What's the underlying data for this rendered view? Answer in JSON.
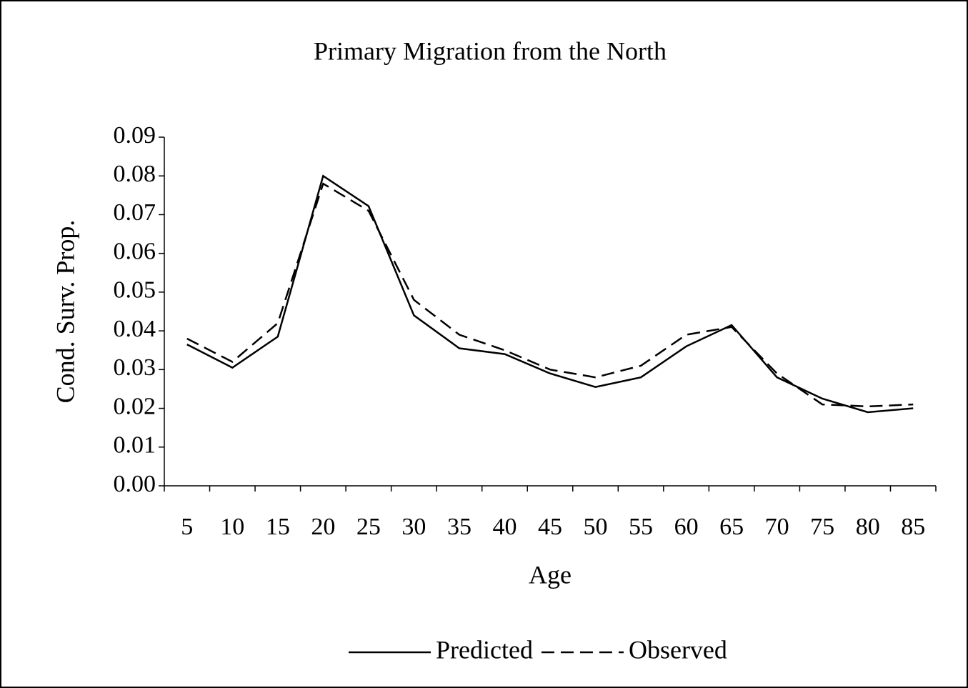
{
  "chart_data": {
    "type": "line",
    "title": "Primary Migration from the North",
    "x_label": "Age",
    "y_label": "Cond. Surv. Prop.",
    "categories": [
      "5",
      "10",
      "15",
      "20",
      "25",
      "30",
      "35",
      "40",
      "45",
      "50",
      "55",
      "60",
      "65",
      "70",
      "75",
      "80",
      "85"
    ],
    "series": [
      {
        "name": "Predicted",
        "color": "#000000",
        "dash": "solid",
        "values": [
          0.0365,
          0.0305,
          0.0385,
          0.08,
          0.0722,
          0.044,
          0.0355,
          0.034,
          0.029,
          0.0255,
          0.028,
          0.036,
          0.0415,
          0.028,
          0.0225,
          0.019,
          0.02
        ]
      },
      {
        "name": "Observed",
        "color": "#000000",
        "dash": "dashed",
        "values": [
          0.038,
          0.032,
          0.042,
          0.078,
          0.071,
          0.048,
          0.039,
          0.035,
          0.03,
          0.028,
          0.031,
          0.039,
          0.041,
          0.029,
          0.021,
          0.0205,
          0.021
        ]
      }
    ],
    "ylim": [
      0,
      0.09
    ],
    "yticks": [
      {
        "value": 0,
        "label": "0.00"
      },
      0.01,
      0.02,
      0.03,
      0.04,
      0.05,
      0.06,
      0.07,
      0.08,
      0.09
    ],
    "grid": false,
    "legend": "bottom"
  }
}
